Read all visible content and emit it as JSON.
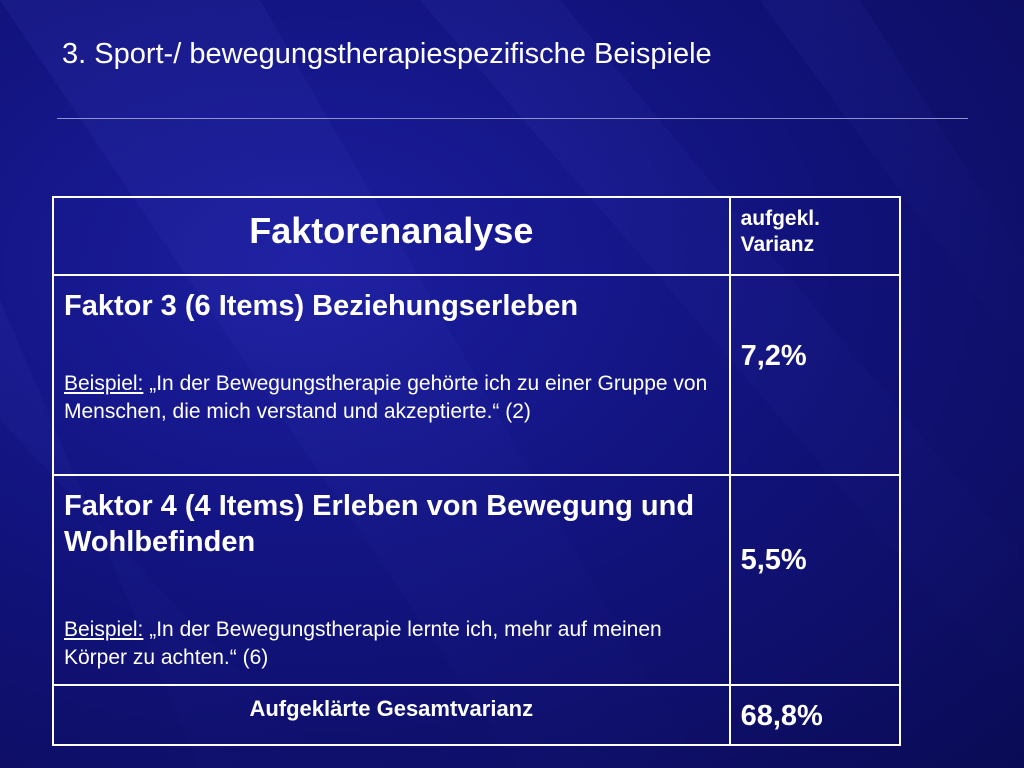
{
  "slide": {
    "title": "3. Sport-/ bewegungstherapiespezifische Beispiele"
  },
  "table": {
    "header": {
      "main": "Faktorenanalyse",
      "side_line1": "aufgekl.",
      "side_line2": "Varianz"
    },
    "rows": [
      {
        "title": "Faktor 3 (6 Items) Beziehungserleben",
        "example_label": "Beispiel:",
        "example_text": " „In der Bewegungstherapie gehörte ich zu einer Gruppe von Menschen, die mich verstand und akzeptierte.“ (2)",
        "value": "7,2%"
      },
      {
        "title": "Faktor 4 (4 Items) Erleben von Bewegung und Wohlbefinden",
        "example_label": "Beispiel:",
        "example_text": " „In der Bewegungstherapie lernte ich, mehr auf meinen Körper zu achten.“ (6)",
        "value": "5,5%"
      }
    ],
    "footer": {
      "label": "Aufgeklärte Gesamtvarianz",
      "value": "68,8%"
    }
  }
}
